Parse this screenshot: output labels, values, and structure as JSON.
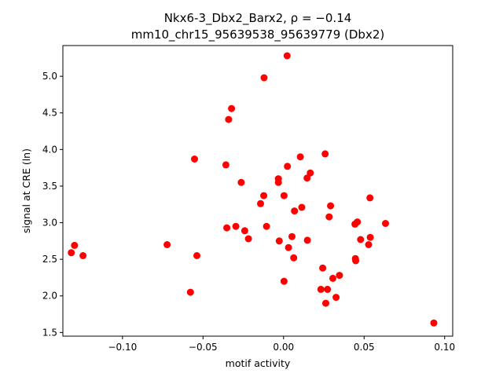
{
  "chart_data": {
    "type": "scatter",
    "title_line1": "Nkx6-3_Dbx2_Barx2, ρ = −0.14",
    "title_line2": "mm10_chr15_95639538_95639779 (Dbx2)",
    "xlabel": "motif activity",
    "ylabel": "signal at CRE (ln)",
    "xlim": [
      -0.137,
      0.105
    ],
    "ylim": [
      1.45,
      5.42
    ],
    "xticks": [
      -0.1,
      -0.05,
      0.0,
      0.05,
      0.1
    ],
    "xtick_labels": [
      "−0.10",
      "−0.05",
      "0.00",
      "0.05",
      "0.10"
    ],
    "yticks": [
      1.5,
      2.0,
      2.5,
      3.0,
      3.5,
      4.0,
      4.5,
      5.0
    ],
    "ytick_labels": [
      "1.5",
      "2.0",
      "2.5",
      "3.0",
      "3.5",
      "4.0",
      "4.5",
      "5.0"
    ],
    "grid": false,
    "point_color": "#ff0000",
    "points": [
      [
        -0.1318,
        2.59
      ],
      [
        -0.1298,
        2.69
      ],
      [
        -0.1245,
        2.55
      ],
      [
        -0.0723,
        2.7
      ],
      [
        -0.0578,
        2.05
      ],
      [
        -0.0553,
        3.87
      ],
      [
        -0.0538,
        2.55
      ],
      [
        -0.0358,
        3.79
      ],
      [
        -0.0352,
        2.93
      ],
      [
        -0.0341,
        4.41
      ],
      [
        -0.0323,
        4.56
      ],
      [
        -0.0296,
        2.95
      ],
      [
        -0.0263,
        3.55
      ],
      [
        -0.0241,
        2.89
      ],
      [
        -0.0218,
        2.78
      ],
      [
        -0.0143,
        3.26
      ],
      [
        -0.0123,
        3.37
      ],
      [
        -0.0121,
        4.98
      ],
      [
        -0.0106,
        2.95
      ],
      [
        -0.0032,
        3.6
      ],
      [
        -0.0032,
        3.55
      ],
      [
        -0.0027,
        2.75
      ],
      [
        0.0003,
        3.37
      ],
      [
        0.0003,
        2.2
      ],
      [
        0.0022,
        5.28
      ],
      [
        0.0024,
        3.77
      ],
      [
        0.0031,
        2.66
      ],
      [
        0.0052,
        2.81
      ],
      [
        0.0063,
        2.52
      ],
      [
        0.0068,
        3.16
      ],
      [
        0.0104,
        3.9
      ],
      [
        0.0113,
        3.21
      ],
      [
        0.0146,
        3.61
      ],
      [
        0.0148,
        2.76
      ],
      [
        0.0166,
        3.68
      ],
      [
        0.0232,
        2.09
      ],
      [
        0.0243,
        2.38
      ],
      [
        0.0258,
        3.94
      ],
      [
        0.0262,
        1.9
      ],
      [
        0.0273,
        2.09
      ],
      [
        0.0283,
        3.08
      ],
      [
        0.0292,
        3.23
      ],
      [
        0.0306,
        2.24
      ],
      [
        0.0326,
        1.98
      ],
      [
        0.0347,
        2.28
      ],
      [
        0.0443,
        2.98
      ],
      [
        0.0446,
        2.51
      ],
      [
        0.0448,
        2.48
      ],
      [
        0.0458,
        3.01
      ],
      [
        0.0478,
        2.77
      ],
      [
        0.0528,
        2.7
      ],
      [
        0.0538,
        2.8
      ],
      [
        0.0536,
        3.34
      ],
      [
        0.0633,
        2.99
      ],
      [
        0.0933,
        1.63
      ]
    ]
  }
}
